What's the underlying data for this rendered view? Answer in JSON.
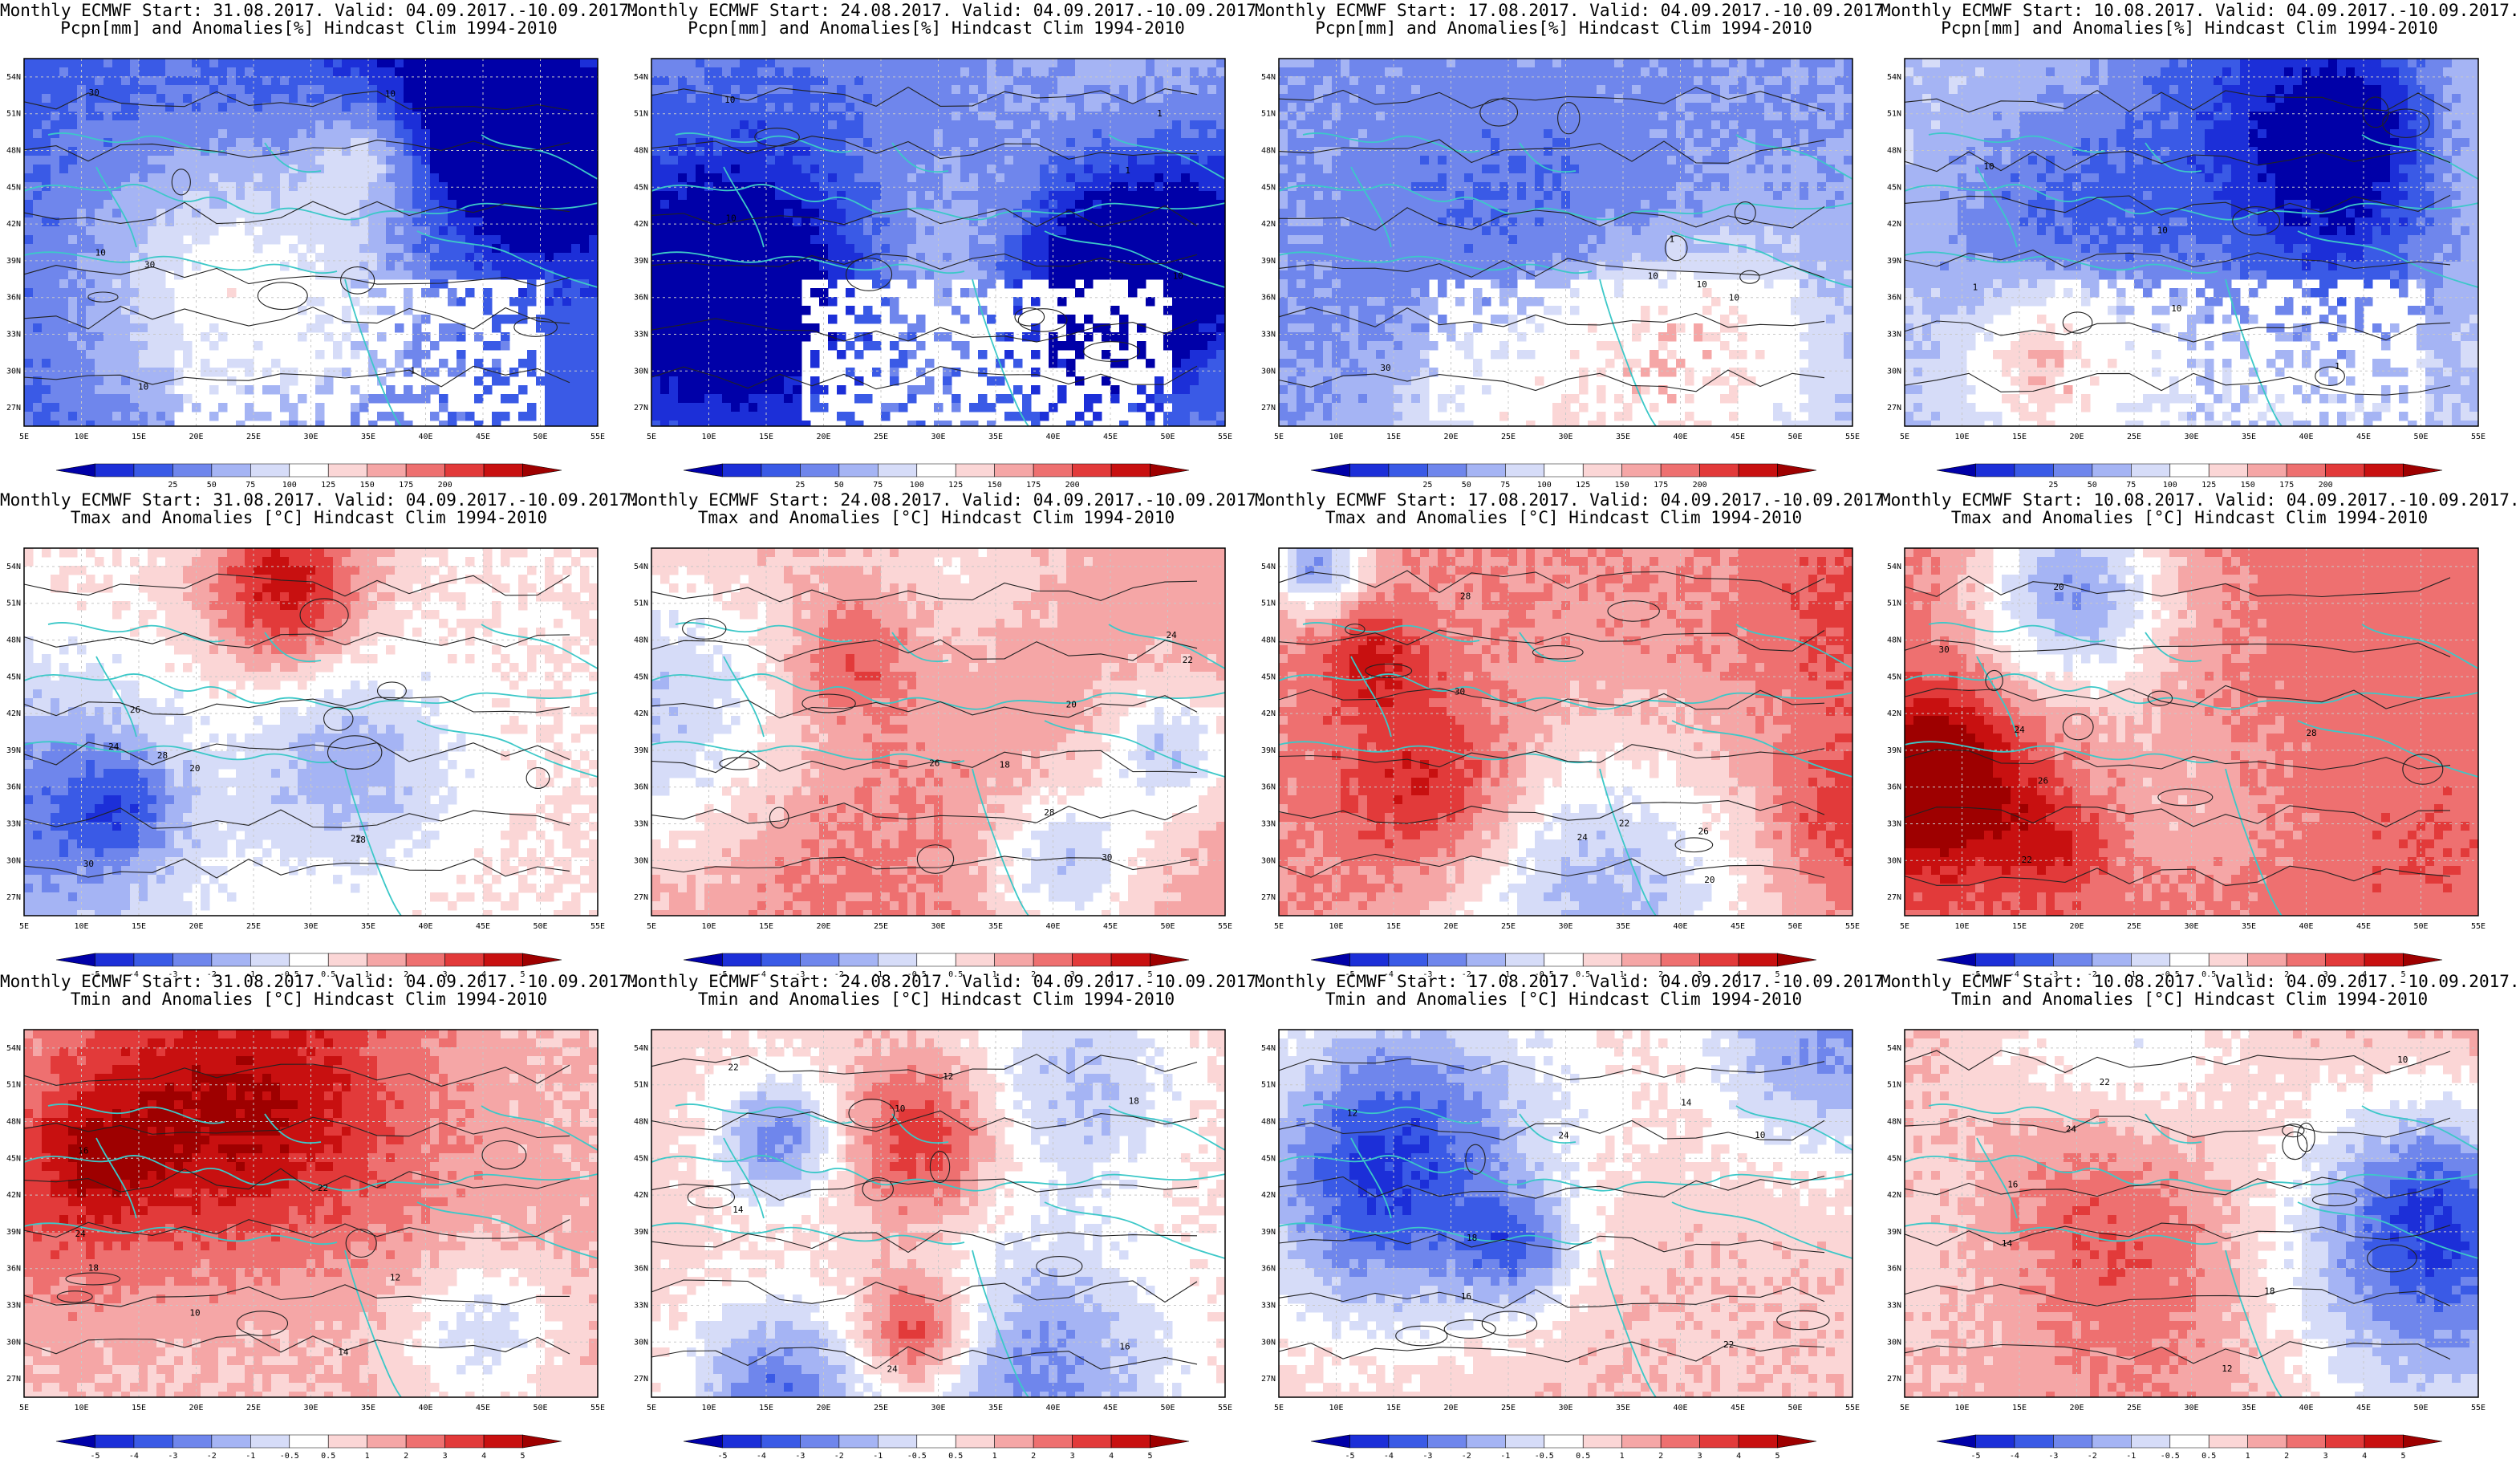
{
  "panels": [
    {
      "row": 0,
      "col": 0,
      "line1": "Monthly ECMWF Start: 31.08.2017. Valid: 04.09.2017.-10.09.2017.",
      "line2": "Pcpn[mm] and Anomalies[%] Hindcast Clim 1994-2010",
      "variable": "precip",
      "bias": -0.8,
      "seed": 11,
      "contours": [
        "10",
        "30",
        "10",
        "1",
        "10",
        "30"
      ]
    },
    {
      "row": 0,
      "col": 1,
      "line1": "Monthly ECMWF Start: 24.08.2017. Valid: 04.09.2017.-10.09.2017.",
      "line2": "Pcpn[mm] and Anomalies[%] Hindcast Clim 1994-2010",
      "variable": "precip",
      "bias": -0.6,
      "seed": 23,
      "contours": [
        "10",
        "1",
        "10",
        "1",
        "10"
      ]
    },
    {
      "row": 0,
      "col": 2,
      "line1": "Monthly ECMWF Start: 17.08.2017. Valid: 04.09.2017.-10.09.2017.",
      "line2": "Pcpn[mm] and Anomalies[%] Hindcast Clim 1994-2010",
      "variable": "precip",
      "bias": -0.5,
      "seed": 37,
      "contours": [
        "10",
        "30",
        "10",
        "1",
        "10"
      ]
    },
    {
      "row": 0,
      "col": 3,
      "line1": "Monthly ECMWF Start: 10.08.2017. Valid: 04.09.2017.-10.09.2017.",
      "line2": "Pcpn[mm] and Anomalies[%] Hindcast Clim 1994-2010",
      "variable": "precip",
      "bias": -0.3,
      "seed": 41,
      "contours": [
        "10",
        "1",
        "10",
        "1",
        "10"
      ]
    },
    {
      "row": 1,
      "col": 0,
      "line1": "Monthly ECMWF Start: 31.08.2017. Valid: 04.09.2017.-10.09.2017.",
      "line2": "Tmax and Anomalies [°C] Hindcast Clim 1994-2010",
      "variable": "temp",
      "bias": 0.1,
      "seed": 53,
      "contours": [
        "18",
        "20",
        "22",
        "24",
        "26",
        "28",
        "30"
      ]
    },
    {
      "row": 1,
      "col": 1,
      "line1": "Monthly ECMWF Start: 24.08.2017. Valid: 04.09.2017.-10.09.2017.",
      "line2": "Tmax and Anomalies [°C] Hindcast Clim 1994-2010",
      "variable": "temp",
      "bias": 0.4,
      "seed": 67,
      "contours": [
        "18",
        "20",
        "22",
        "24",
        "26",
        "28",
        "30"
      ]
    },
    {
      "row": 1,
      "col": 2,
      "line1": "Monthly ECMWF Start: 17.08.2017. Valid: 04.09.2017.-10.09.2017.",
      "line2": "Tmax and Anomalies [°C] Hindcast Clim 1994-2010",
      "variable": "temp",
      "bias": 0.5,
      "seed": 71,
      "contours": [
        "20",
        "22",
        "24",
        "26",
        "28",
        "30"
      ]
    },
    {
      "row": 1,
      "col": 3,
      "line1": "Monthly ECMWF Start: 10.08.2017. Valid: 04.09.2017.-10.09.2017.",
      "line2": "Tmax and Anomalies [°C] Hindcast Clim 1994-2010",
      "variable": "temp",
      "bias": 0.6,
      "seed": 83,
      "contours": [
        "20",
        "22",
        "24",
        "26",
        "28",
        "30"
      ]
    },
    {
      "row": 2,
      "col": 0,
      "line1": "Monthly ECMWF Start: 31.08.2017. Valid: 04.09.2017.-10.09.2017.",
      "line2": "Tmin and Anomalies [°C] Hindcast Clim 1994-2010",
      "variable": "temp",
      "bias": 0.3,
      "seed": 97,
      "contours": [
        "10",
        "12",
        "14",
        "16",
        "18",
        "22",
        "24"
      ]
    },
    {
      "row": 2,
      "col": 1,
      "line1": "Monthly ECMWF Start: 24.08.2017. Valid: 04.09.2017.-10.09.2017.",
      "line2": "Tmin and Anomalies [°C] Hindcast Clim 1994-2010",
      "variable": "temp",
      "bias": 0.2,
      "seed": 101,
      "contours": [
        "10",
        "12",
        "14",
        "16",
        "18",
        "22",
        "24"
      ]
    },
    {
      "row": 2,
      "col": 2,
      "line1": "Monthly ECMWF Start: 17.08.2017. Valid: 04.09.2017.-10.09.2017.",
      "line2": "Tmin and Anomalies [°C] Hindcast Clim 1994-2010",
      "variable": "temp",
      "bias": 0.25,
      "seed": 113,
      "contours": [
        "10",
        "12",
        "14",
        "16",
        "18",
        "22",
        "24"
      ]
    },
    {
      "row": 2,
      "col": 3,
      "line1": "Monthly ECMWF Start: 10.08.2017. Valid: 04.09.2017.-10.09.2017.",
      "line2": "Tmin and Anomalies [°C] Hindcast Clim 1994-2010",
      "variable": "temp",
      "bias": 0.45,
      "seed": 127,
      "contours": [
        "10",
        "12",
        "14",
        "16",
        "18",
        "22",
        "24"
      ]
    }
  ],
  "lat_labels": [
    "54N",
    "51N",
    "48N",
    "45N",
    "42N",
    "39N",
    "36N",
    "33N",
    "30N",
    "27N"
  ],
  "lon_labels": [
    "5E",
    "10E",
    "15E",
    "20E",
    "25E",
    "30E",
    "35E",
    "40E",
    "45E",
    "50E",
    "55E"
  ],
  "precip_colorbar": {
    "labels": [
      "25",
      "50",
      "75",
      "100",
      "125",
      "150",
      "175",
      "200"
    ],
    "colors": [
      "#0000a8",
      "#1c2fd8",
      "#3a5ae6",
      "#6f86ec",
      "#a5b4f4",
      "#d6dcf8",
      "#ffffff",
      "#fbd6d6",
      "#f5a6a6",
      "#ee7070",
      "#e23a3a",
      "#c81010",
      "#9e0000"
    ]
  },
  "temp_colorbar": {
    "labels": [
      "-5",
      "-4",
      "-3",
      "-2",
      "-1",
      "-0.5",
      "0.5",
      "1",
      "2",
      "3",
      "4",
      "5"
    ],
    "colors": [
      "#0000a8",
      "#1c2fd8",
      "#3a5ae6",
      "#6f86ec",
      "#a5b4f4",
      "#d6dcf8",
      "#ffffff",
      "#fbd6d6",
      "#f5a6a6",
      "#ee7070",
      "#e23a3a",
      "#c81010",
      "#9e0000"
    ]
  },
  "style": {
    "coastline": "#3cc8c8",
    "contour": "#222222",
    "grid": "#c8c8c8",
    "frame": "#000000"
  }
}
